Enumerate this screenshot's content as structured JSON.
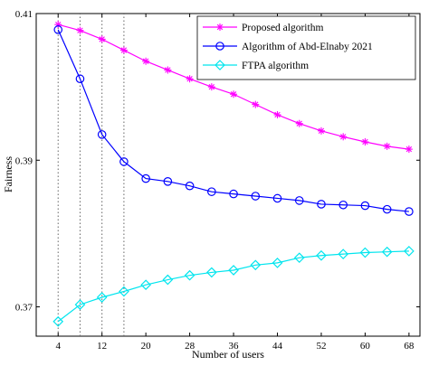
{
  "chart_data": {
    "type": "line",
    "xlabel": "Number of users",
    "ylabel": "Fairness",
    "x": [
      4,
      8,
      12,
      16,
      20,
      24,
      28,
      32,
      36,
      40,
      44,
      48,
      52,
      56,
      60,
      64,
      68
    ],
    "xticks": [
      4,
      12,
      20,
      28,
      36,
      44,
      52,
      60,
      68
    ],
    "xlim": [
      0,
      70
    ],
    "yticks": [
      0.37,
      0.39,
      0.41
    ],
    "ytick_labels": [
      "0.37",
      "0.39",
      "0.41"
    ],
    "ylim": [
      0.366,
      0.41
    ],
    "grid": false,
    "legend_position": "top-right",
    "vertical_guides": [
      4,
      8,
      12,
      16
    ],
    "series": [
      {
        "name": "Proposed algorithm",
        "color": "#ff00ff",
        "marker": "asterisk",
        "values": [
          0.4085,
          0.4077,
          0.4065,
          0.405,
          0.4035,
          0.4023,
          0.4011,
          0.4,
          0.399,
          0.3976,
          0.3962,
          0.395,
          0.394,
          0.3932,
          0.3925,
          0.3919,
          0.3915
        ]
      },
      {
        "name": "Algorithm of Abd-Elnaby 2021",
        "color": "#0000ff",
        "marker": "circle",
        "values": [
          0.4078,
          0.4011,
          0.3935,
          0.3898,
          0.3875,
          0.3871,
          0.3865,
          0.3857,
          0.3854,
          0.3851,
          0.3848,
          0.3845,
          0.384,
          0.3839,
          0.3838,
          0.3833,
          0.383
        ]
      },
      {
        "name": "FTPA algorithm",
        "color": "#00e5ee",
        "marker": "diamond",
        "values": [
          0.368,
          0.3703,
          0.3713,
          0.3721,
          0.373,
          0.3737,
          0.3743,
          0.3747,
          0.375,
          0.3757,
          0.376,
          0.3767,
          0.377,
          0.3772,
          0.3774,
          0.3775,
          0.3776
        ]
      }
    ]
  }
}
